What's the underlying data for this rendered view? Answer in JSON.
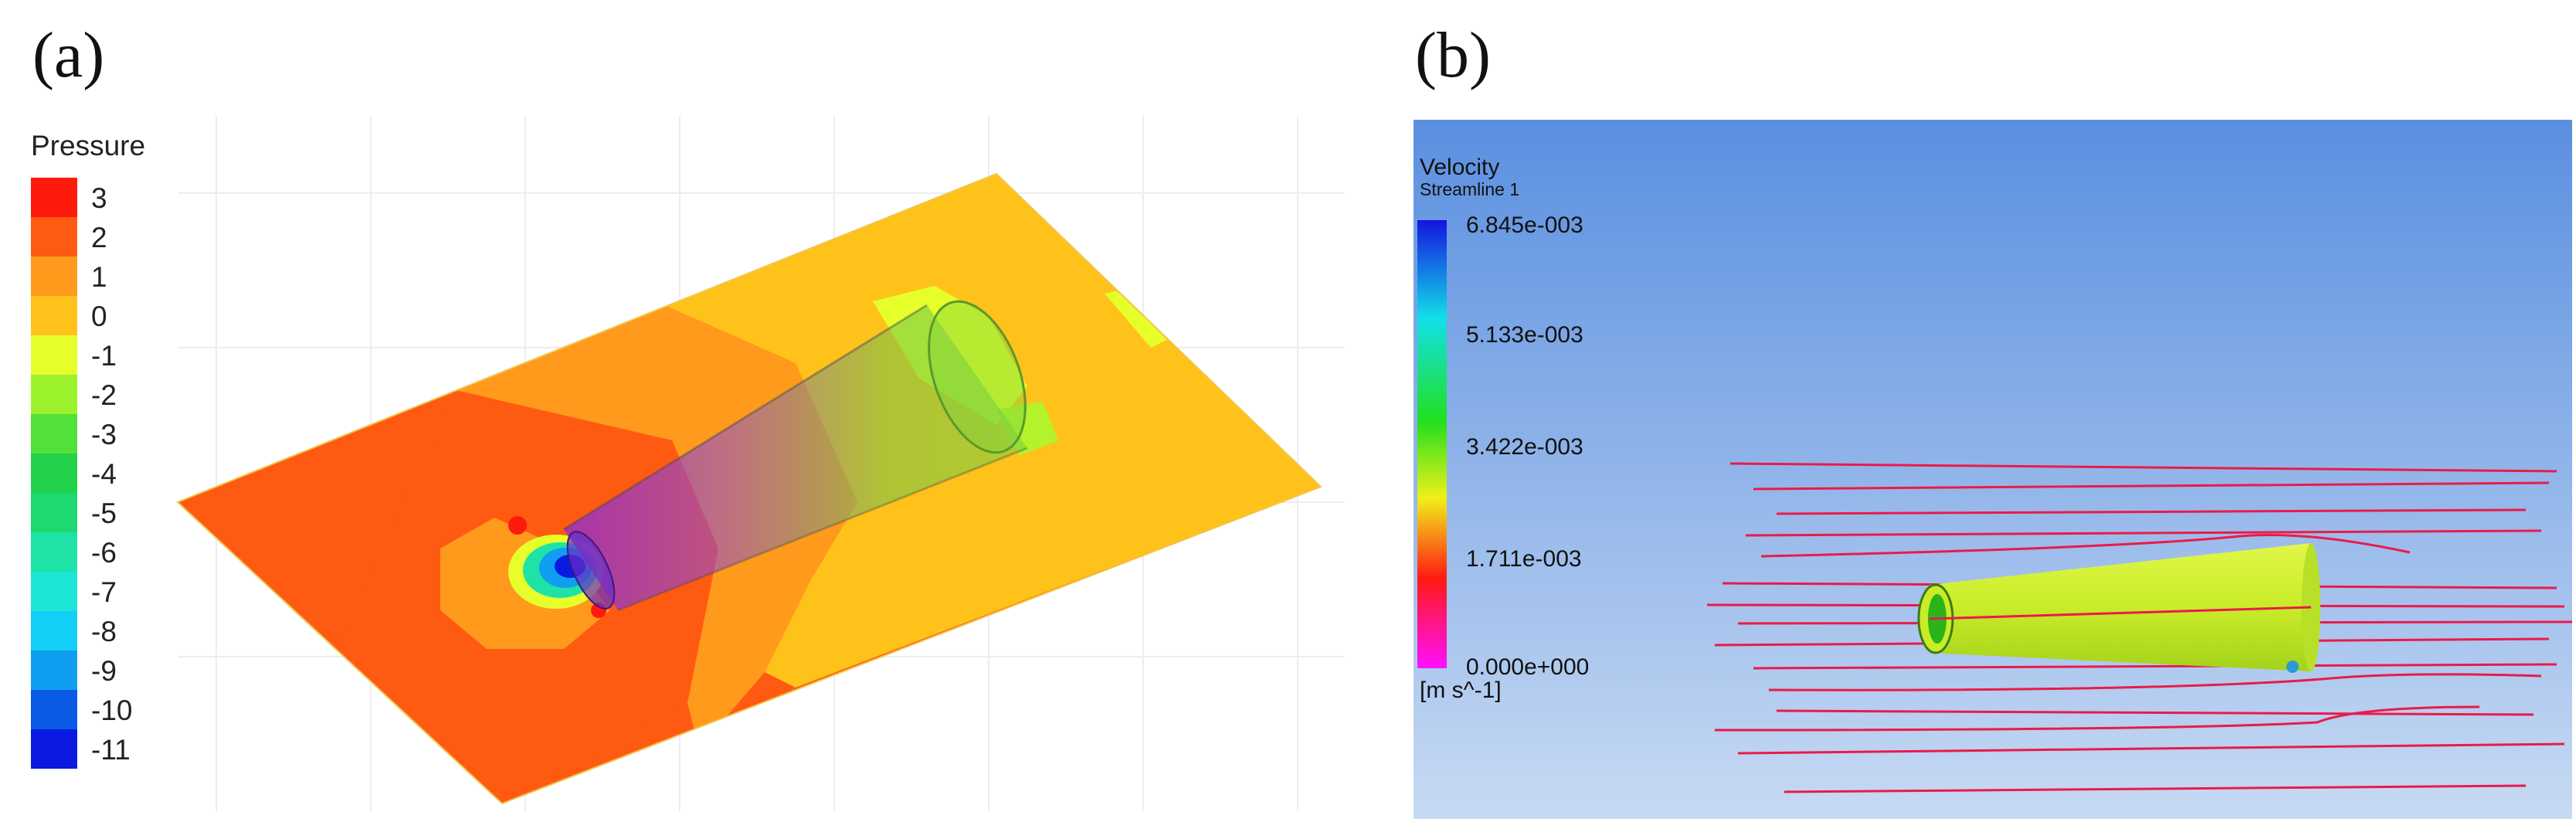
{
  "panels": {
    "a": {
      "label": "(a)",
      "legend_title": "Pressure",
      "legend": [
        {
          "value": "3",
          "color": "#ff1a0e"
        },
        {
          "value": "2",
          "color": "#ff5a12"
        },
        {
          "value": "1",
          "color": "#ff9a1c"
        },
        {
          "value": "0",
          "color": "#ffc21a"
        },
        {
          "value": "-1",
          "color": "#e6ff2a"
        },
        {
          "value": "-2",
          "color": "#9cf22c"
        },
        {
          "value": "-3",
          "color": "#52e13a"
        },
        {
          "value": "-4",
          "color": "#22d24a"
        },
        {
          "value": "-5",
          "color": "#1ed870"
        },
        {
          "value": "-6",
          "color": "#1ee2a6"
        },
        {
          "value": "-7",
          "color": "#1ee6d6"
        },
        {
          "value": "-8",
          "color": "#14cff5"
        },
        {
          "value": "-9",
          "color": "#0f9ef0"
        },
        {
          "value": "-10",
          "color": "#0a5ae6"
        },
        {
          "value": "-11",
          "color": "#0a1ae0"
        }
      ]
    },
    "b": {
      "label": "(b)",
      "legend_title": "Velocity",
      "legend_subtitle": "Streamline 1",
      "ticks": [
        "6.845e-003",
        "5.133e-003",
        "3.422e-003",
        "1.711e-003",
        "0.000e+000"
      ],
      "unit": "[m s^-1]",
      "colors": [
        "#1414e0",
        "#12e0e8",
        "#22e01e",
        "#f0f01a",
        "#ff1a12",
        "#ff10ff"
      ],
      "background_top": "#5a8fe0",
      "background_bottom": "#c7daf3",
      "streamline_color": "#ea1a4a",
      "cone_color": "#c8ec28"
    }
  }
}
